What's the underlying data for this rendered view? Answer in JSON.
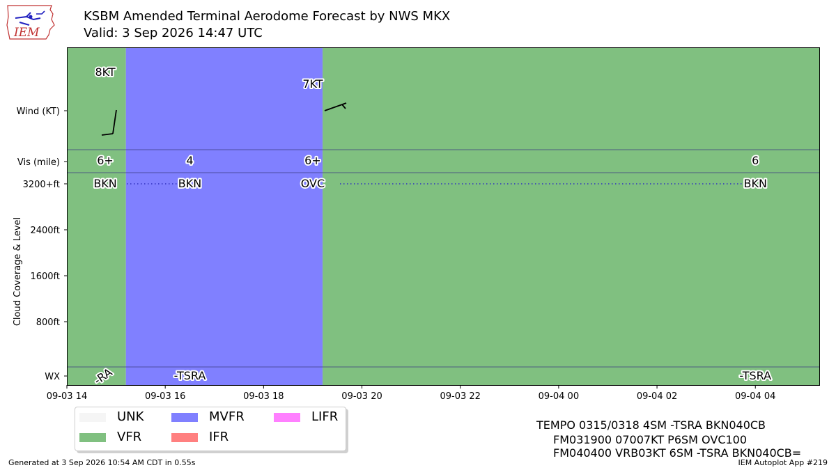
{
  "header": {
    "title_line1": "KSBM Amended Terminal Aerodome Forecast by NWS MKX",
    "title_line2": "Valid: 3 Sep 2026 14:47 UTC",
    "logo_text": "IEM"
  },
  "colors": {
    "UNK": "#f5f5f5",
    "VFR": "#80c080",
    "MVFR": "#8080ff",
    "IFR": "#ff8080",
    "LIFR": "#ff80ff"
  },
  "chart_data": {
    "type": "timeline",
    "ylabels": {
      "wind": "Wind (KT)",
      "vis": "Vis (mile)",
      "cloud_axis": "Cloud Coverage & Level",
      "wx": "WX"
    },
    "cloud_ticks": [
      "3200+ft",
      "2400ft",
      "1600ft",
      "800ft"
    ],
    "x_ticks": [
      "09-03 14",
      "09-03 16",
      "09-03 18",
      "09-03 20",
      "09-03 22",
      "09-04 00",
      "09-04 02",
      "09-04 04"
    ],
    "x_range_hours": [
      14,
      29.3
    ],
    "category_periods": [
      {
        "start_hour": 14.0,
        "end_hour": 15.2,
        "category": "VFR"
      },
      {
        "start_hour": 15.2,
        "end_hour": 19.2,
        "category": "MVFR"
      },
      {
        "start_hour": 19.2,
        "end_hour": 29.3,
        "category": "VFR"
      }
    ],
    "forecasts": [
      {
        "hour": 14.78,
        "wind_label": "8KT",
        "vis": "6+",
        "sky": "BKN",
        "wx": "-RA"
      },
      {
        "hour": 16.5,
        "vis": "4",
        "sky": "BKN",
        "wx": "-TSRA"
      },
      {
        "hour": 19.0,
        "wind_label": "7KT",
        "vis": "6+",
        "sky": "OVC"
      },
      {
        "hour": 28.0,
        "vis": "6",
        "sky": "BKN",
        "wx": "-TSRA"
      }
    ]
  },
  "legend": [
    {
      "key": "UNK",
      "label": "UNK"
    },
    {
      "key": "VFR",
      "label": "VFR"
    },
    {
      "key": "MVFR",
      "label": "MVFR"
    },
    {
      "key": "IFR",
      "label": "IFR"
    },
    {
      "key": "LIFR",
      "label": "LIFR"
    }
  ],
  "taf_text": [
    "TEMPO 0315/0318 4SM -TSRA BKN040CB",
    "FM031900 07007KT P6SM OVC100",
    "FM040400 VRB03KT 6SM -TSRA BKN040CB="
  ],
  "footer": {
    "left": "Generated at 3 Sep 2026 10:54 AM CDT in 0.55s",
    "right": "IEM Autoplot App #219"
  }
}
